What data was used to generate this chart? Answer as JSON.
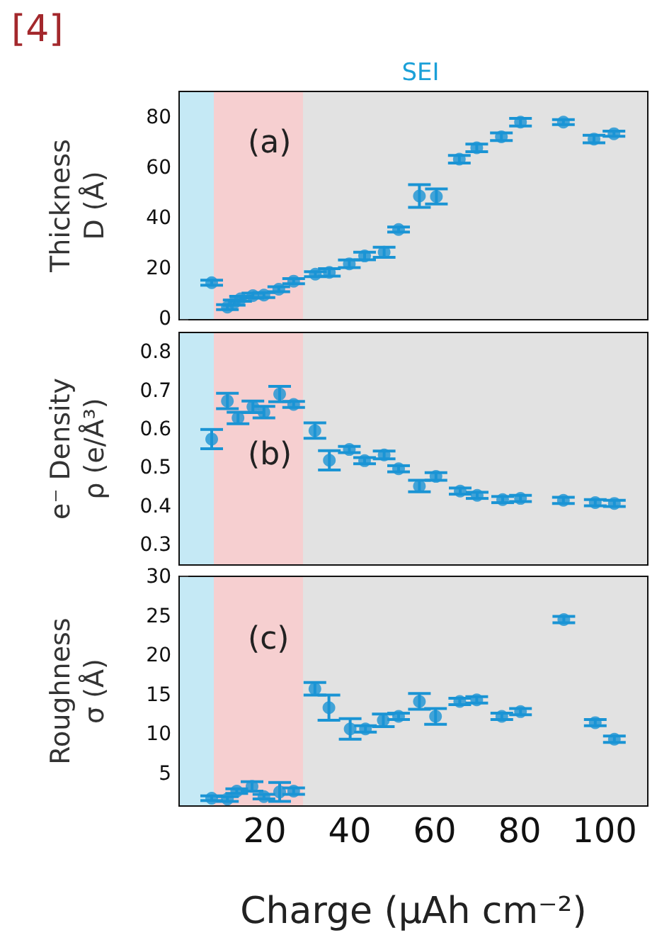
{
  "chart_data": [
    {
      "type": "scatter",
      "title": "SEI",
      "annotations": [
        "[4]",
        "(a)"
      ],
      "ylabel": "Thickness\nD (Å)",
      "marker": "circle",
      "tick_labels": "y",
      "xlim": [
        0,
        110
      ],
      "xticks": [
        20,
        40,
        60,
        80,
        100
      ],
      "ylim": [
        0,
        90
      ],
      "yticks": [
        0,
        20,
        40,
        60,
        80
      ],
      "bands": [
        {
          "axis": "x",
          "from": 0,
          "to": 8,
          "color": "#c5e9f5"
        },
        {
          "axis": "x",
          "from": 8,
          "to": 29,
          "color": "#f6cfd0"
        },
        {
          "axis": "x",
          "from": 29,
          "to": 110,
          "color": "#e2e2e2"
        }
      ],
      "series": [
        {
          "color": "#1a94d4",
          "x": [
            7.5,
            11.2,
            12.8,
            14.3,
            17.2,
            19.8,
            23.3,
            26.8,
            31.9,
            35.2,
            39.9,
            43.5,
            48.1,
            51.5,
            56.4,
            60.4,
            65.8,
            69.9,
            75.7,
            80.2,
            90.3,
            97.5,
            102.2
          ],
          "values": [
            14.4,
            4.7,
            6.5,
            8,
            9.3,
            9.5,
            11.8,
            15,
            17.8,
            18.5,
            21.9,
            25,
            26.5,
            35.5,
            48.8,
            48.6,
            63.4,
            67.9,
            72.3,
            78.1,
            78.1,
            71.4,
            73.5
          ],
          "errors": [
            1,
            1,
            1,
            1,
            1,
            1,
            1,
            1,
            1,
            1.5,
            1.5,
            1.5,
            2,
            1,
            4.5,
            3,
            1.5,
            1.5,
            1.5,
            1.5,
            1,
            1.5,
            1
          ]
        }
      ]
    },
    {
      "type": "scatter",
      "annotations": [
        "(b)"
      ],
      "ylabel": "e⁻ Density\nρ (e/Å³)",
      "marker": "circle",
      "tick_labels": "y",
      "xlim": [
        0,
        110
      ],
      "xticks": [
        20,
        40,
        60,
        80,
        100
      ],
      "ylim": [
        0.25,
        0.85
      ],
      "yticks": [
        0.3,
        0.4,
        0.5,
        0.6,
        0.7,
        0.8
      ],
      "bands": [
        {
          "axis": "x",
          "from": 0,
          "to": 8,
          "color": "#c5e9f5"
        },
        {
          "axis": "x",
          "from": 8,
          "to": 29,
          "color": "#f6cfd0"
        },
        {
          "axis": "x",
          "from": 29,
          "to": 110,
          "color": "#e2e2e2"
        }
      ],
      "series": [
        {
          "color": "#1a94d4",
          "x": [
            7.5,
            11.2,
            13.7,
            17.2,
            19.8,
            23.5,
            26.8,
            31.8,
            35.2,
            39.9,
            43.5,
            48.1,
            51.5,
            56.4,
            60.3,
            66,
            70,
            76,
            80.2,
            90.3,
            97.8,
            102.3
          ],
          "values": [
            0.575,
            0.674,
            0.63,
            0.659,
            0.645,
            0.692,
            0.665,
            0.597,
            0.52,
            0.548,
            0.519,
            0.534,
            0.498,
            0.453,
            0.478,
            0.44,
            0.429,
            0.418,
            0.421,
            0.416,
            0.41,
            0.408
          ],
          "errors": [
            0.025,
            0.02,
            0.015,
            0.015,
            0.015,
            0.02,
            0.008,
            0.02,
            0.025,
            0.008,
            0.008,
            0.01,
            0.008,
            0.015,
            0.01,
            0.008,
            0.008,
            0.008,
            0.008,
            0.008,
            0.008,
            0.008
          ]
        }
      ]
    },
    {
      "type": "scatter",
      "annotations": [
        "(c)"
      ],
      "ylabel": "Roughness\nσ (Å)",
      "xlabel": "Charge (µAh cm⁻²)",
      "marker": "circle",
      "xlim": [
        0,
        110
      ],
      "xticks": [
        20,
        40,
        60,
        80,
        100
      ],
      "ylim": [
        1,
        30
      ],
      "yticks": [
        5,
        10,
        15,
        20,
        25,
        30
      ],
      "bands": [
        {
          "axis": "x",
          "from": 0,
          "to": 8,
          "color": "#c5e9f5"
        },
        {
          "axis": "x",
          "from": 8,
          "to": 29,
          "color": "#f6cfd0"
        },
        {
          "axis": "x",
          "from": 29,
          "to": 110,
          "color": "#e2e2e2"
        }
      ],
      "series": [
        {
          "color": "#1a94d4",
          "x": [
            7.5,
            11.2,
            13.4,
            17,
            19.8,
            23.5,
            26.8,
            31.8,
            35.1,
            40.1,
            43.7,
            47.9,
            51.5,
            56.4,
            60.2,
            65.9,
            69.9,
            75.8,
            80.2,
            90.4,
            97.8,
            102.3
          ],
          "values": [
            1.9,
            1.8,
            2.8,
            3.4,
            2.1,
            2.7,
            2.8,
            15.8,
            13.4,
            10.7,
            10.7,
            11.8,
            12.3,
            14.2,
            12.3,
            14.2,
            14.4,
            12.3,
            12.9,
            24.6,
            11.5,
            9.4
          ],
          "errors": [
            0.3,
            0.3,
            0.3,
            0.6,
            0.3,
            1.2,
            0.4,
            0.8,
            1.6,
            1.3,
            0.4,
            0.8,
            0.4,
            1,
            1,
            0.4,
            0.4,
            0.4,
            0.4,
            0.4,
            0.4,
            0.4
          ]
        }
      ]
    }
  ]
}
